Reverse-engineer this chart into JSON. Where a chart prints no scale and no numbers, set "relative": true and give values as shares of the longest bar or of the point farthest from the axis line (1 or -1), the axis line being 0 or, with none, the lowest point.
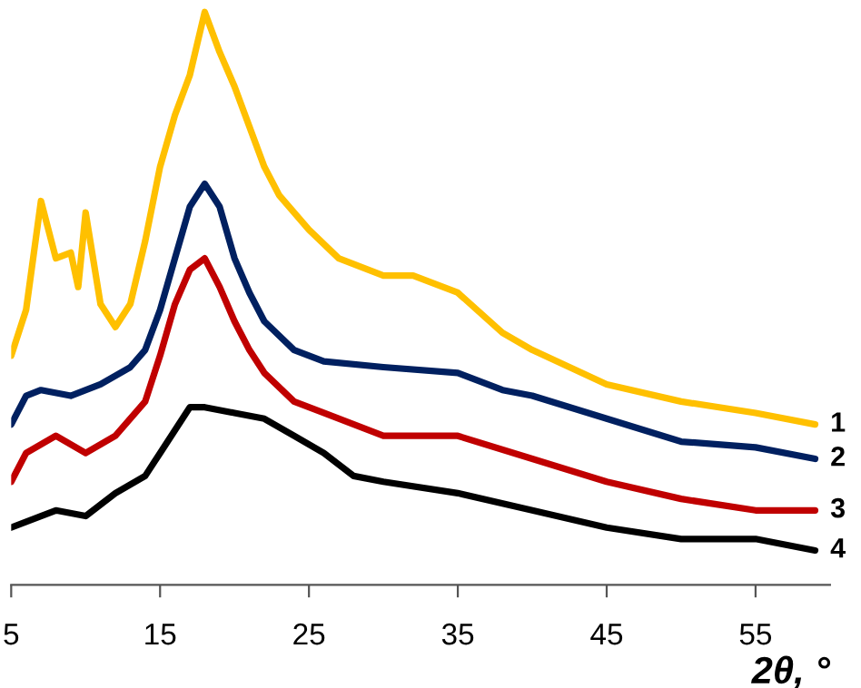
{
  "chart_data": {
    "type": "line",
    "relative": true,
    "xlabel": "2θ, °",
    "xlim": [
      5,
      60
    ],
    "xticks": [
      5,
      15,
      25,
      35,
      45,
      55
    ],
    "grid": false,
    "legend": false,
    "marker": "none",
    "line_style": "solid",
    "series": [
      {
        "name": "1",
        "color": "#ffc000",
        "x": [
          5,
          6,
          7,
          8,
          9,
          9.5,
          10,
          11,
          12,
          13,
          14,
          15,
          16,
          17,
          18,
          19,
          20,
          21,
          22,
          23,
          25,
          27,
          30,
          32,
          35,
          38,
          40,
          45,
          50,
          55,
          59
        ],
        "values": [
          0.4,
          0.48,
          0.67,
          0.57,
          0.58,
          0.52,
          0.65,
          0.49,
          0.45,
          0.49,
          0.6,
          0.73,
          0.82,
          0.89,
          1.0,
          0.93,
          0.87,
          0.8,
          0.73,
          0.68,
          0.62,
          0.57,
          0.54,
          0.54,
          0.51,
          0.44,
          0.41,
          0.35,
          0.32,
          0.3,
          0.28
        ]
      },
      {
        "name": "2",
        "color": "#002060",
        "x": [
          5,
          6,
          7,
          9,
          11,
          13,
          14,
          15,
          16,
          17,
          18,
          19,
          20,
          21,
          22,
          24,
          26,
          30,
          35,
          38,
          40,
          45,
          50,
          55,
          59
        ],
        "values": [
          0.28,
          0.33,
          0.34,
          0.33,
          0.35,
          0.38,
          0.41,
          0.48,
          0.57,
          0.66,
          0.7,
          0.66,
          0.57,
          0.51,
          0.46,
          0.41,
          0.39,
          0.38,
          0.37,
          0.34,
          0.33,
          0.29,
          0.25,
          0.24,
          0.22
        ]
      },
      {
        "name": "3",
        "color": "#c00000",
        "x": [
          5,
          6,
          8,
          10,
          12,
          14,
          15,
          16,
          17,
          18,
          19,
          20,
          21,
          22,
          24,
          26,
          30,
          35,
          40,
          45,
          50,
          55,
          59
        ],
        "values": [
          0.18,
          0.23,
          0.26,
          0.23,
          0.26,
          0.32,
          0.4,
          0.49,
          0.55,
          0.57,
          0.52,
          0.46,
          0.41,
          0.37,
          0.32,
          0.3,
          0.26,
          0.26,
          0.22,
          0.18,
          0.15,
          0.13,
          0.13
        ]
      },
      {
        "name": "4",
        "color": "#000000",
        "x": [
          5,
          7,
          8,
          10,
          12,
          14,
          15,
          16,
          17,
          18,
          20,
          22,
          24,
          26,
          28,
          30,
          35,
          40,
          45,
          50,
          55,
          59
        ],
        "values": [
          0.1,
          0.12,
          0.13,
          0.12,
          0.16,
          0.19,
          0.23,
          0.27,
          0.31,
          0.31,
          0.3,
          0.29,
          0.26,
          0.23,
          0.19,
          0.18,
          0.16,
          0.13,
          0.1,
          0.08,
          0.08,
          0.06
        ]
      }
    ]
  }
}
